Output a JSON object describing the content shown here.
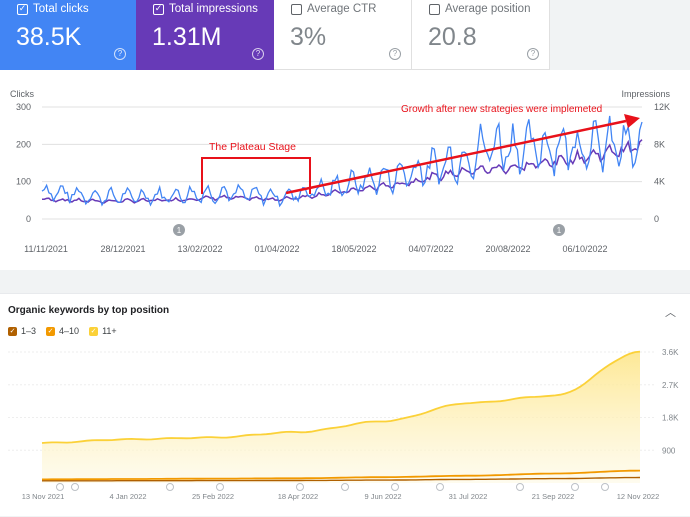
{
  "metrics": [
    {
      "label": "Total clicks",
      "value": "38.5K",
      "checked": true
    },
    {
      "label": "Total impressions",
      "value": "1.31M",
      "checked": true
    },
    {
      "label": "Average CTR",
      "value": "3%",
      "checked": false
    },
    {
      "label": "Average position",
      "value": "20.8",
      "checked": false
    }
  ],
  "colors": {
    "clicks": "#4285f4",
    "impressions": "#673ab7",
    "annotation": "#e8111a",
    "kw_1_3": "#b06000",
    "kw_4_10": "#f29900",
    "kw_11plus": "#fbd138"
  },
  "performance_chart": {
    "left_axis_title": "Clicks",
    "right_axis_title": "Impressions",
    "left_ticks": [
      "300",
      "200",
      "100",
      "0"
    ],
    "right_ticks": [
      "12K",
      "8K",
      "4K",
      "0"
    ],
    "x_ticks": [
      "11/11/2021",
      "28/12/2021",
      "13/02/2022",
      "01/04/2022",
      "18/05/2022",
      "04/07/2022",
      "20/08/2022",
      "06/10/2022"
    ],
    "markers": [
      "1",
      "1"
    ],
    "annotation_plateau": "The Plateau Stage",
    "annotation_growth": "Growth after new strategies were implemeted"
  },
  "keywords_chart": {
    "title": "Organic keywords by top position",
    "legend": [
      "1–3",
      "4–10",
      "11+"
    ],
    "y_ticks": [
      "3.6K",
      "2.7K",
      "1.8K",
      "900"
    ],
    "x_ticks": [
      "13 Nov 2021",
      "4 Jan 2022",
      "25 Feb 2022",
      "18 Apr 2022",
      "9 Jun 2022",
      "31 Jul 2022",
      "21 Sep 2022",
      "12 Nov 2022"
    ],
    "collapse_icon": "chevron-up-icon"
  },
  "chart_data": [
    {
      "type": "line",
      "x_range": [
        "2021-11-11",
        "2022-11-12"
      ],
      "series": [
        {
          "name": "Total clicks",
          "axis": "left",
          "approx_points": [
            [
              0,
              75
            ],
            [
              0.1,
              60
            ],
            [
              0.2,
              62
            ],
            [
              0.3,
              70
            ],
            [
              0.4,
              60
            ],
            [
              0.5,
              90
            ],
            [
              0.6,
              120
            ],
            [
              0.7,
              160
            ],
            [
              0.75,
              200
            ],
            [
              0.8,
              190
            ],
            [
              0.9,
              200
            ],
            [
              1.0,
              190
            ]
          ]
        },
        {
          "name": "Total impressions",
          "axis": "right",
          "approx_points": [
            [
              0,
              2100
            ],
            [
              0.1,
              1900
            ],
            [
              0.2,
              2000
            ],
            [
              0.3,
              2300
            ],
            [
              0.4,
              2100
            ],
            [
              0.5,
              2900
            ],
            [
              0.6,
              3800
            ],
            [
              0.7,
              5100
            ],
            [
              0.8,
              5600
            ],
            [
              0.9,
              6600
            ],
            [
              1.0,
              7800
            ]
          ]
        }
      ],
      "left_ylim": [
        0,
        300
      ],
      "right_ylim": [
        0,
        12000
      ],
      "grid": true
    },
    {
      "type": "area",
      "series": [
        {
          "name": "1–3",
          "values": [
            60,
            62,
            65,
            70,
            80,
            100,
            120,
            150
          ]
        },
        {
          "name": "4–10",
          "values": [
            100,
            110,
            120,
            130,
            160,
            200,
            260,
            340
          ]
        },
        {
          "name": "11+",
          "values": [
            1100,
            1200,
            1250,
            1400,
            1700,
            2200,
            2400,
            3600
          ]
        }
      ],
      "categories": [
        "13 Nov 2021",
        "4 Jan 2022",
        "25 Feb 2022",
        "18 Apr 2022",
        "9 Jun 2022",
        "31 Jul 2022",
        "21 Sep 2022",
        "12 Nov 2022"
      ],
      "ylim": [
        0,
        3600
      ],
      "grid": true
    }
  ]
}
